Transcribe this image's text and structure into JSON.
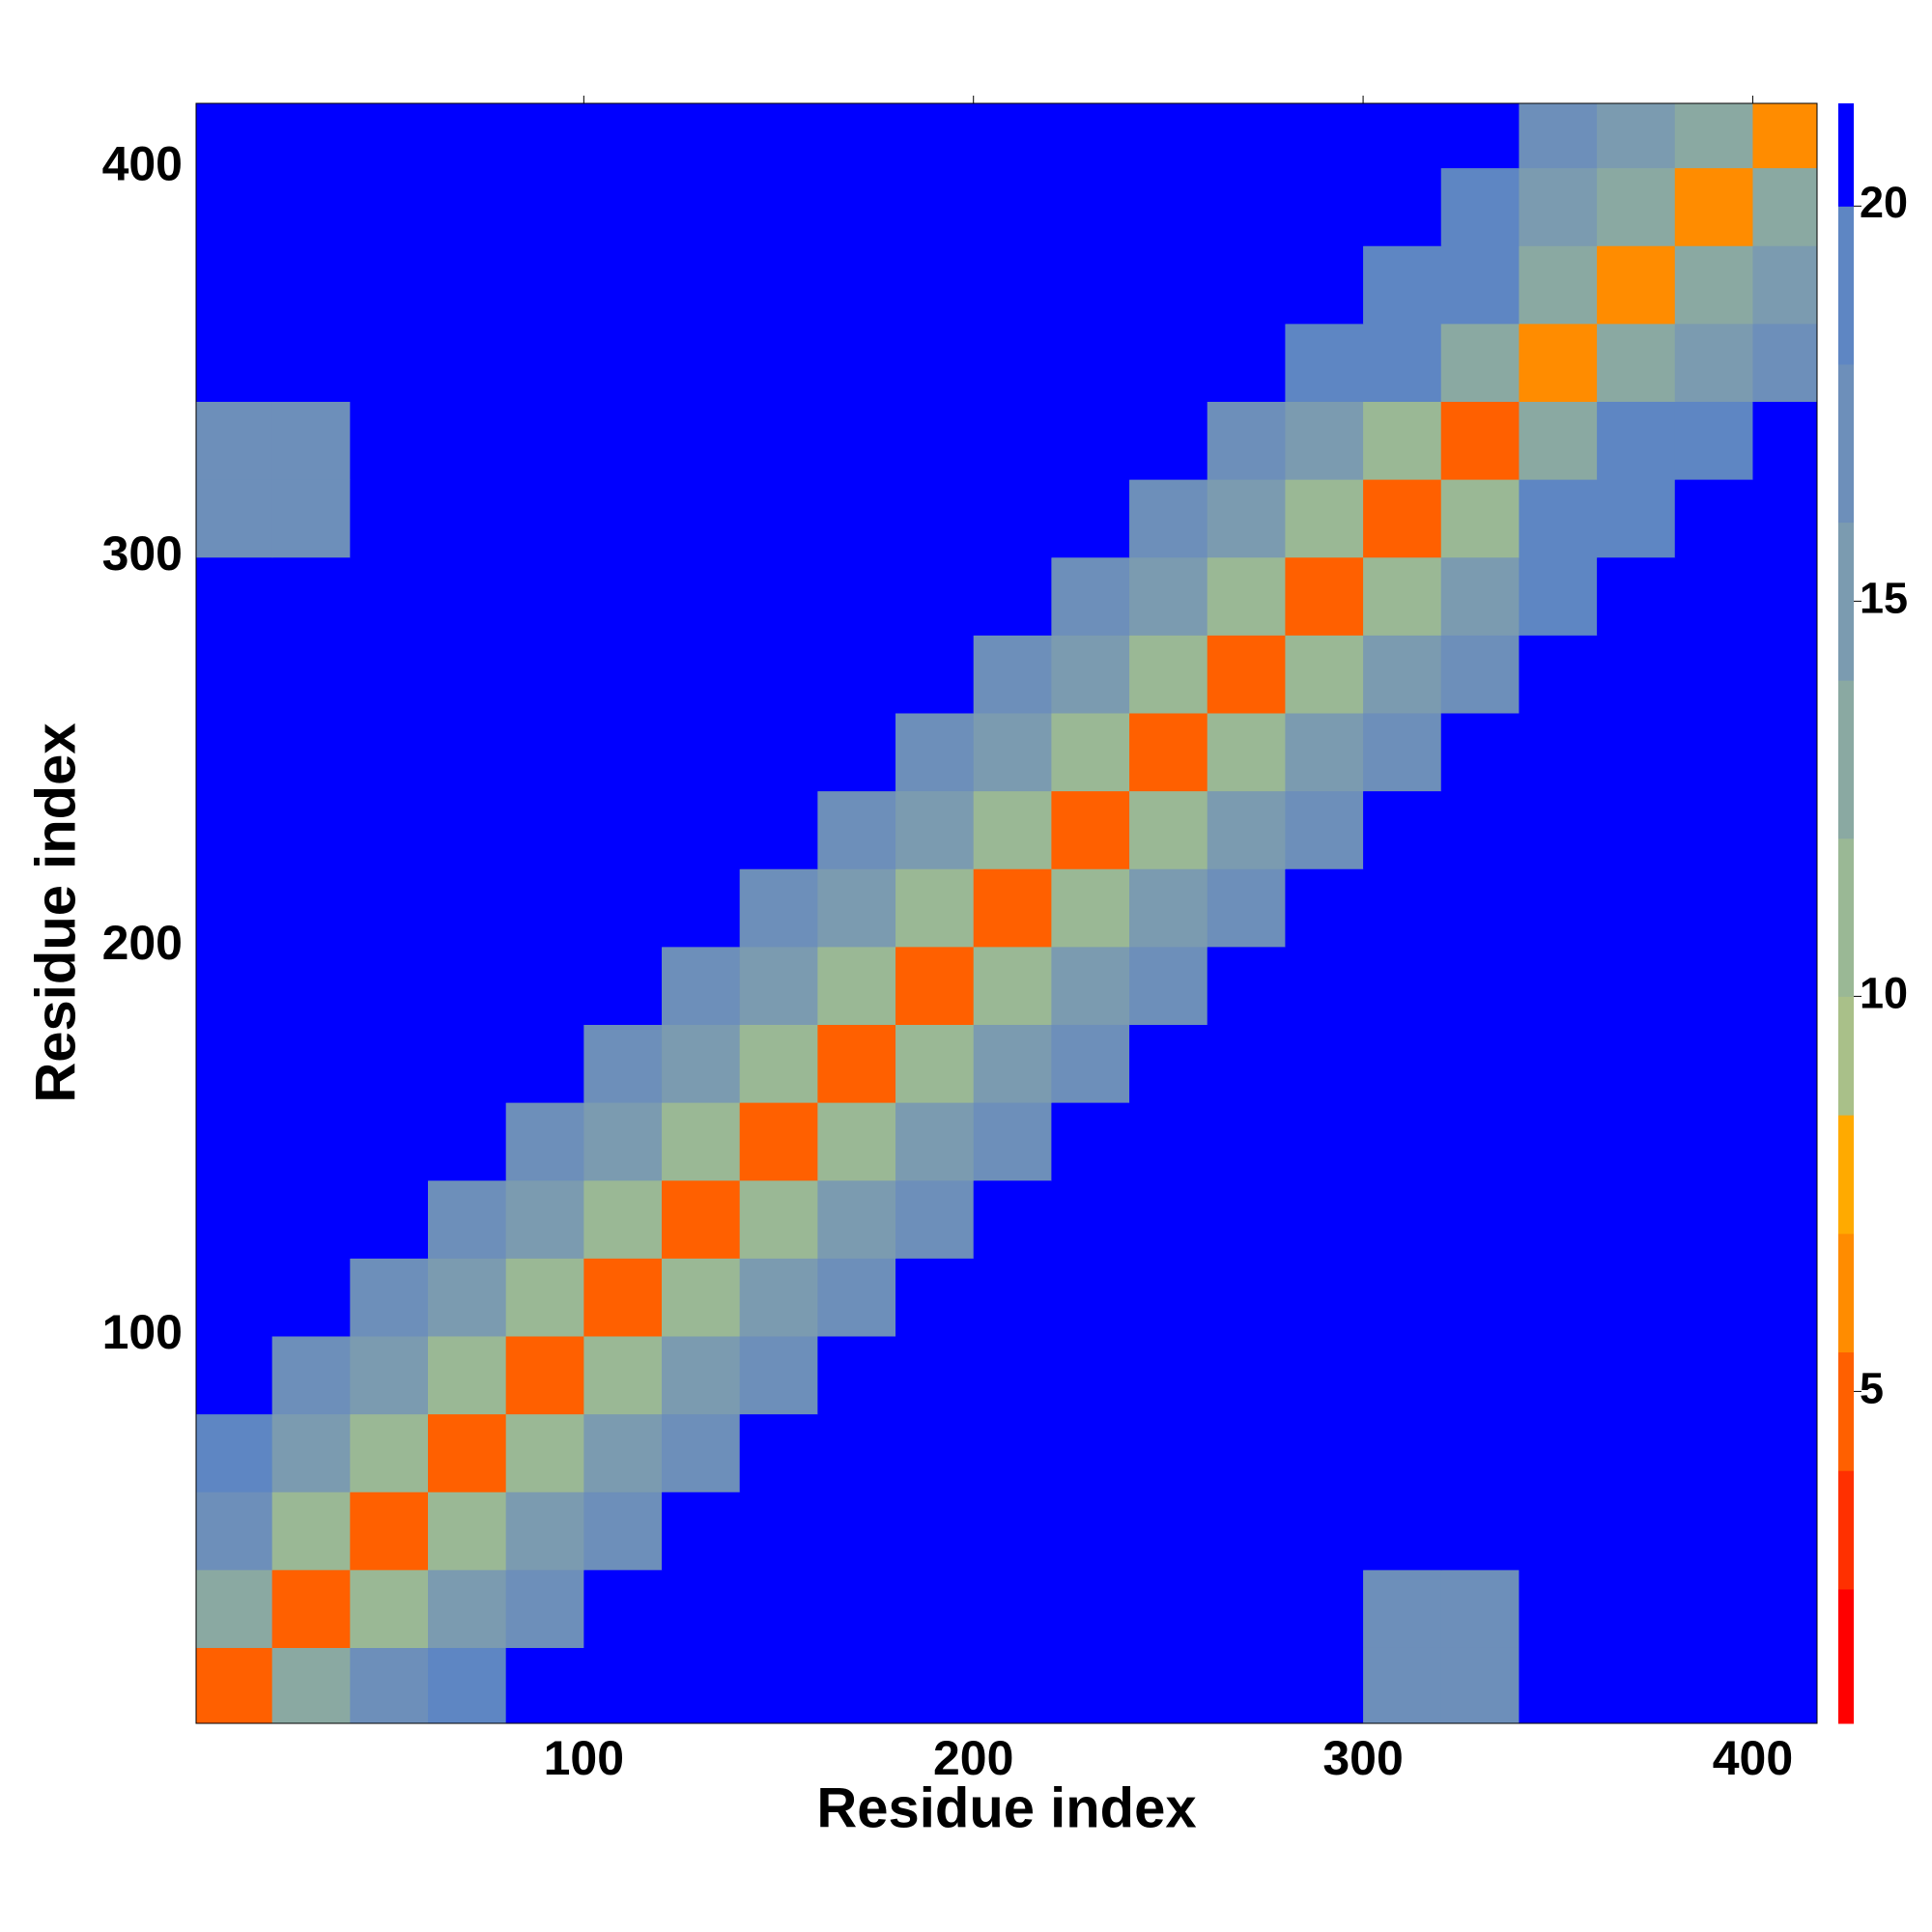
{
  "chart_data": {
    "type": "heatmap",
    "xlabel": "Residue index",
    "ylabel": "Residue index",
    "xlim": [
      0.5,
      416.5
    ],
    "ylim": [
      0.5,
      416.5
    ],
    "xticks": [
      100,
      200,
      300,
      400
    ],
    "yticks": [
      100,
      200,
      300,
      400
    ],
    "x": [
      10,
      30,
      50,
      70,
      90,
      110,
      130,
      150,
      170,
      190,
      210,
      230,
      250,
      270,
      290,
      310,
      330,
      350,
      370,
      390,
      410
    ],
    "y": [
      10,
      30,
      50,
      70,
      90,
      110,
      130,
      150,
      170,
      190,
      210,
      230,
      250,
      270,
      290,
      310,
      330,
      350,
      370,
      390,
      410
    ],
    "z": [
      [
        5,
        14,
        17,
        19,
        21,
        21,
        21,
        21,
        21,
        21,
        21,
        21,
        21,
        21,
        21,
        18,
        18,
        21,
        21,
        21,
        21
      ],
      [
        14,
        5,
        11,
        15,
        18,
        21,
        21,
        21,
        21,
        21,
        21,
        21,
        21,
        21,
        21,
        18,
        18,
        21,
        21,
        21,
        21
      ],
      [
        17,
        11,
        5,
        11,
        15,
        18,
        21,
        21,
        21,
        21,
        21,
        21,
        21,
        21,
        21,
        21,
        21,
        21,
        21,
        21,
        21
      ],
      [
        19,
        15,
        11,
        5,
        11,
        15,
        18,
        21,
        21,
        21,
        21,
        21,
        21,
        21,
        21,
        21,
        21,
        21,
        21,
        21,
        21
      ],
      [
        21,
        18,
        15,
        11,
        5,
        11,
        15,
        18,
        21,
        21,
        21,
        21,
        21,
        21,
        21,
        21,
        21,
        21,
        21,
        21,
        21
      ],
      [
        21,
        21,
        18,
        15,
        11,
        5,
        11,
        15,
        18,
        21,
        21,
        21,
        21,
        21,
        21,
        21,
        21,
        21,
        21,
        21,
        21
      ],
      [
        21,
        21,
        21,
        18,
        15,
        11,
        5,
        11,
        15,
        18,
        21,
        21,
        21,
        21,
        21,
        21,
        21,
        21,
        21,
        21,
        21
      ],
      [
        21,
        21,
        21,
        21,
        18,
        15,
        11,
        5,
        11,
        15,
        18,
        21,
        21,
        21,
        21,
        21,
        21,
        21,
        21,
        21,
        21
      ],
      [
        21,
        21,
        21,
        21,
        21,
        18,
        15,
        11,
        5,
        11,
        15,
        18,
        21,
        21,
        21,
        21,
        21,
        21,
        21,
        21,
        21
      ],
      [
        21,
        21,
        21,
        21,
        21,
        21,
        18,
        15,
        11,
        5,
        11,
        15,
        18,
        21,
        21,
        21,
        21,
        21,
        21,
        21,
        21
      ],
      [
        21,
        21,
        21,
        21,
        21,
        21,
        21,
        18,
        15,
        11,
        5,
        11,
        15,
        18,
        21,
        21,
        21,
        21,
        21,
        21,
        21
      ],
      [
        21,
        21,
        21,
        21,
        21,
        21,
        21,
        21,
        18,
        15,
        11,
        5,
        11,
        15,
        18,
        21,
        21,
        21,
        21,
        21,
        21
      ],
      [
        21,
        21,
        21,
        21,
        21,
        21,
        21,
        21,
        21,
        18,
        15,
        11,
        5,
        11,
        15,
        18,
        21,
        21,
        21,
        21,
        21
      ],
      [
        21,
        21,
        21,
        21,
        21,
        21,
        21,
        21,
        21,
        21,
        18,
        15,
        11,
        5,
        11,
        15,
        18,
        21,
        21,
        21,
        21
      ],
      [
        21,
        21,
        21,
        21,
        21,
        21,
        21,
        21,
        21,
        21,
        21,
        18,
        15,
        11,
        5,
        11,
        15,
        20,
        21,
        21,
        21
      ],
      [
        18,
        18,
        21,
        21,
        21,
        21,
        21,
        21,
        21,
        21,
        21,
        21,
        18,
        15,
        11,
        5,
        11,
        19,
        20,
        21,
        21
      ],
      [
        18,
        18,
        21,
        21,
        21,
        21,
        21,
        21,
        21,
        21,
        21,
        21,
        21,
        18,
        15,
        11,
        5,
        14,
        19,
        20,
        21
      ],
      [
        21,
        21,
        21,
        21,
        21,
        21,
        21,
        21,
        21,
        21,
        21,
        21,
        21,
        21,
        20,
        19,
        14,
        6,
        13,
        16,
        17
      ],
      [
        21,
        21,
        21,
        21,
        21,
        21,
        21,
        21,
        21,
        21,
        21,
        21,
        21,
        21,
        21,
        20,
        19,
        13,
        6,
        13,
        16
      ],
      [
        21,
        21,
        21,
        21,
        21,
        21,
        21,
        21,
        21,
        21,
        21,
        21,
        21,
        21,
        21,
        21,
        20,
        16,
        13,
        6,
        13
      ],
      [
        21,
        21,
        21,
        21,
        21,
        21,
        21,
        21,
        21,
        21,
        21,
        21,
        21,
        21,
        21,
        21,
        21,
        17,
        16,
        13,
        6
      ]
    ],
    "clim": [
      0.8,
      21.3
    ],
    "cticks": [
      5,
      10,
      15,
      20
    ],
    "colorscale": [
      [
        2.5,
        "#ff0000"
      ],
      [
        4,
        "#ff3000"
      ],
      [
        5.5,
        "#ff6000"
      ],
      [
        7,
        "#ff8c00"
      ],
      [
        8.5,
        "#ffaa00"
      ],
      [
        10,
        "#a9c089"
      ],
      [
        12,
        "#9ab895"
      ],
      [
        14,
        "#8aa9a2"
      ],
      [
        16,
        "#7b9bb0"
      ],
      [
        18,
        "#6d8fba"
      ],
      [
        20,
        "#5e86c3"
      ],
      [
        21.3,
        "#0000ff"
      ]
    ]
  }
}
